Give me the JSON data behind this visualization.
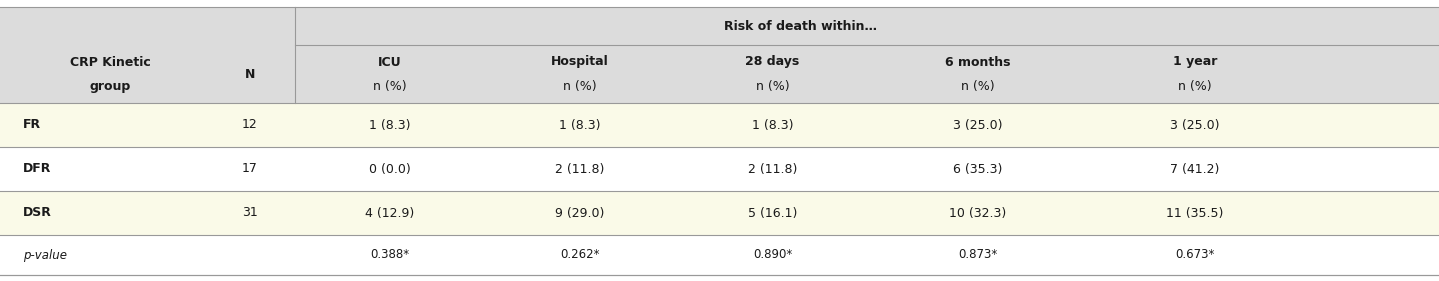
{
  "header_top": "Risk of death within…",
  "col_headers": [
    {
      "line1": "CRP Kinetic",
      "line2": "group"
    },
    {
      "line1": "N",
      "line2": ""
    },
    {
      "line1": "ICU",
      "line2": "n (%)"
    },
    {
      "line1": "Hospital",
      "line2": "n (%)"
    },
    {
      "line1": "28 days",
      "line2": "n (%)"
    },
    {
      "line1": "6 months",
      "line2": "n (%)"
    },
    {
      "line1": "1 year",
      "line2": "n (%)"
    }
  ],
  "rows": [
    {
      "label": "FR",
      "n": "12",
      "icu": "1 (8.3)",
      "hosp": "1 (8.3)",
      "d28": "1 (8.3)",
      "m6": "3 (25.0)",
      "y1": "3 (25.0)",
      "bg": "#FAFAE8"
    },
    {
      "label": "DFR",
      "n": "17",
      "icu": "0 (0.0)",
      "hosp": "2 (11.8)",
      "d28": "2 (11.8)",
      "m6": "6 (35.3)",
      "y1": "7 (41.2)",
      "bg": "#FFFFFF"
    },
    {
      "label": "DSR",
      "n": "31",
      "icu": "4 (12.9)",
      "hosp": "9 (29.0)",
      "d28": "5 (16.1)",
      "m6": "10 (32.3)",
      "y1": "11 (35.5)",
      "bg": "#FAFAE8"
    }
  ],
  "pvalue_row": {
    "label": "p-value",
    "icu": "0.388*",
    "hosp": "0.262*",
    "d28": "0.890*",
    "m6": "0.873*",
    "y1": "0.673*",
    "bg": "#FFFFFF"
  },
  "header_bg": "#DCDCDC",
  "fig_bg": "#FFFFFF",
  "font_size_header": 9.0,
  "font_size_data": 9.0,
  "font_size_pvalue": 8.5,
  "text_color": "#1a1a1a",
  "line_color": "#999999",
  "line_lw": 0.8
}
